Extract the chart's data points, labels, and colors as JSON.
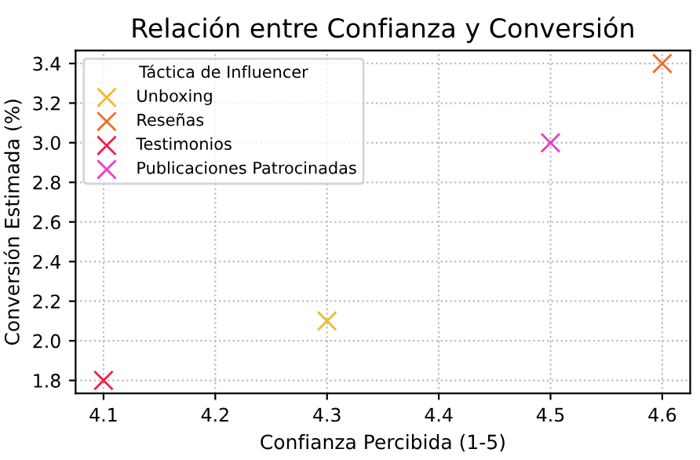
{
  "chart_data": {
    "type": "scatter",
    "title": "Relación entre Confianza y Conversión",
    "xlabel": "Confianza Percibida (1-5)",
    "ylabel": "Conversión Estimada (%)",
    "legend_title": "Táctica de Influencer",
    "series": [
      {
        "name": "Unboxing",
        "color": "#f5b82e",
        "x": [
          4.3
        ],
        "values": [
          2.1
        ]
      },
      {
        "name": "Reseñas",
        "color": "#f26b2a",
        "x": [
          4.6
        ],
        "values": [
          3.4
        ]
      },
      {
        "name": "Testimonios",
        "color": "#e8234a",
        "x": [
          4.1
        ],
        "values": [
          1.8
        ]
      },
      {
        "name": "Publicaciones Patrocinadas",
        "color": "#e83ec8",
        "x": [
          4.5
        ],
        "values": [
          3.0
        ]
      }
    ],
    "xlim": [
      4.075,
      4.625
    ],
    "xticks": [
      4.1,
      4.2,
      4.3,
      4.4,
      4.5,
      4.6
    ],
    "ylim": [
      1.735,
      3.465
    ],
    "yticks": [
      1.8,
      {
        "value": 2,
        "label": "2.0"
      },
      2.2,
      2.4,
      2.6,
      2.8,
      {
        "value": 3,
        "label": "3.0"
      },
      3.2,
      3.4
    ],
    "marker": "cross",
    "grid": true,
    "legend": "top left"
  }
}
